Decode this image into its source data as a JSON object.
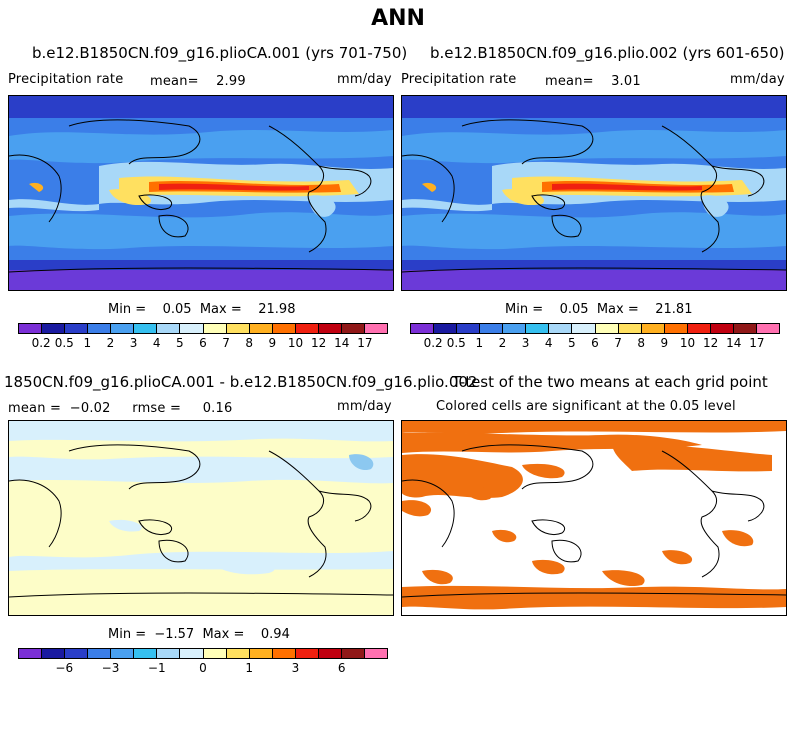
{
  "title": "ANN",
  "panels": [
    {
      "title": "b.e12.B1850CN.f09_g16.plioCA.001 (yrs 701-750)",
      "left_label": "Precipitation rate",
      "mean_text": "mean=    2.99",
      "units": "mm/day",
      "minmax": "Min =    0.05  Max =    21.98"
    },
    {
      "title": "b.e12.B1850CN.f09_g16.plio.002 (yrs 601-650)",
      "left_label": "Precipitation rate",
      "mean_text": "mean=    3.01",
      "units": "mm/day",
      "minmax": "Min =    0.05  Max =    21.81"
    },
    {
      "title": "1850CN.f09_g16.plioCA.001 - b.e12.B1850CN.f09_g16.plio.002",
      "left_label": "mean =  −0.02     rmse =     0.16",
      "units": "mm/day",
      "minmax": "Min =  −1.57  Max =    0.94"
    },
    {
      "title": "T-test of the two means at each grid point",
      "left_label": "Colored cells are significant at the 0.05 level"
    }
  ],
  "precip_colorbar": {
    "colors": [
      "#7b2fd6",
      "#1a1aa0",
      "#2a3ec8",
      "#3b7ee8",
      "#4aa0f0",
      "#36c0f0",
      "#a8d8f8",
      "#d8f0fc",
      "#ffffb8",
      "#ffe060",
      "#ffb020",
      "#ff7000",
      "#f02010",
      "#c00010",
      "#901818",
      "#ff70b0"
    ],
    "ticks": [
      "0.2",
      "0.5",
      "1",
      "2",
      "3",
      "4",
      "5",
      "6",
      "7",
      "8",
      "9",
      "10",
      "12",
      "14",
      "17"
    ]
  },
  "diff_colorbar": {
    "colors": [
      "#7b2fd6",
      "#1a1aa0",
      "#2a3ec8",
      "#3b7ee8",
      "#4aa0f0",
      "#36c0f0",
      "#a8d8f8",
      "#d8f0fc",
      "#ffffb8",
      "#ffe060",
      "#ffb020",
      "#ff7000",
      "#f02010",
      "#c00010",
      "#901818",
      "#ff70b0"
    ],
    "ticks": [
      "−6",
      "−3",
      "−1",
      "0",
      "1",
      "3",
      "6"
    ]
  },
  "colors": {
    "significance": "#f07010",
    "diff_background": "#fdfdc8",
    "diff_blue": "#d8f0fc"
  }
}
